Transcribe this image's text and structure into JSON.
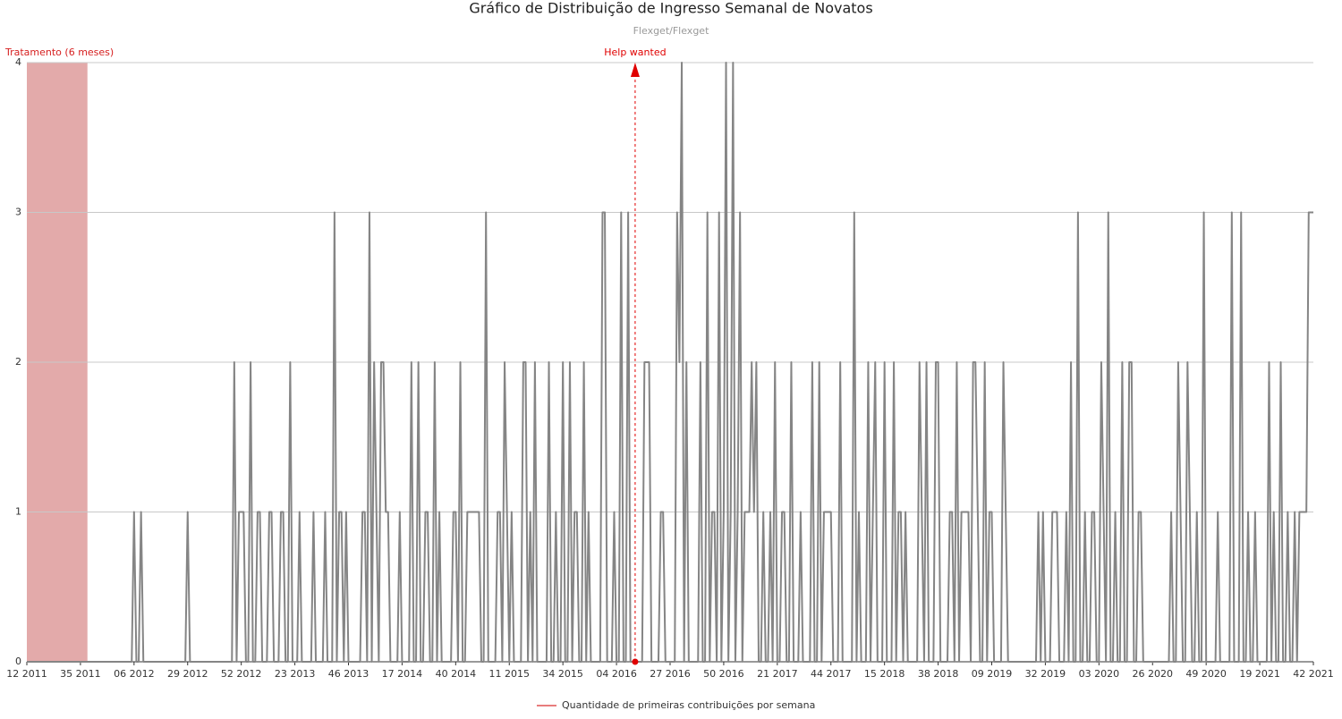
{
  "chart_data": {
    "type": "line",
    "title": "Gráfico de Distribuição de Ingresso Semanal de Novatos",
    "subtitle": "Flexget/Flexget",
    "ylim": [
      0,
      4
    ],
    "yticks": [
      0,
      1,
      2,
      3,
      4
    ],
    "grid": true,
    "annotations": {
      "treatment": {
        "label": "Tratamento (6 meses)",
        "start_index": 0,
        "end_index": 26,
        "color": "#e3aaaa"
      },
      "help_wanted": {
        "label": "Help wanted",
        "index": 261,
        "color": "#e00000"
      }
    },
    "legend_color": "#e87c7c",
    "categories": [
      "12 2011",
      null,
      null,
      null,
      null,
      null,
      null,
      null,
      null,
      null,
      null,
      null,
      null,
      null,
      null,
      null,
      null,
      null,
      null,
      null,
      null,
      null,
      null,
      "35 2011",
      null,
      null,
      null,
      null,
      null,
      null,
      null,
      null,
      null,
      null,
      null,
      null,
      null,
      null,
      null,
      null,
      null,
      null,
      null,
      null,
      null,
      null,
      "06 2012",
      null,
      null,
      null,
      null,
      null,
      null,
      null,
      null,
      null,
      null,
      null,
      null,
      null,
      null,
      null,
      null,
      null,
      null,
      null,
      null,
      null,
      null,
      "29 2012",
      null,
      null,
      null,
      null,
      null,
      null,
      null,
      null,
      null,
      null,
      null,
      null,
      null,
      null,
      null,
      null,
      null,
      null,
      null,
      null,
      null,
      null,
      "52 2012",
      null,
      null,
      null,
      null,
      null,
      null,
      null,
      null,
      null,
      null,
      null,
      null,
      null,
      null,
      null,
      null,
      null,
      null,
      null,
      null,
      null,
      null,
      "23 2013",
      null,
      null,
      null,
      null,
      null,
      null,
      null,
      null,
      null,
      null,
      null,
      null,
      null,
      null,
      null,
      null,
      null,
      null,
      null,
      null,
      null,
      null,
      "46 2013",
      null,
      null,
      null,
      null,
      null,
      null,
      null,
      null,
      null,
      null,
      null,
      null,
      null,
      null,
      null,
      null,
      null,
      null,
      null,
      null,
      null,
      null,
      "17 2014",
      null,
      null,
      null,
      null,
      null,
      null,
      null,
      null,
      null,
      null,
      null,
      null,
      null,
      null,
      null,
      null,
      null,
      null,
      null,
      null,
      null,
      null,
      "40 2014",
      null,
      null,
      null,
      null,
      null,
      null,
      null,
      null,
      null,
      null,
      null,
      null,
      null,
      null,
      null,
      null,
      null,
      null,
      null,
      null,
      null,
      null,
      "11 2015",
      null,
      null,
      null,
      null,
      null,
      null,
      null,
      null,
      null,
      null,
      null,
      null,
      null,
      null,
      null,
      null,
      null,
      null,
      null,
      null,
      null,
      null,
      "34 2015",
      null,
      null,
      null,
      null,
      null,
      null,
      null,
      null,
      null,
      null,
      null,
      null,
      null,
      null,
      null,
      null,
      null,
      null,
      null,
      null,
      null,
      null,
      "04 2016",
      null,
      null,
      null,
      null,
      null,
      null,
      null,
      null,
      null,
      null,
      null,
      null,
      null,
      null,
      null,
      null,
      null,
      null,
      null,
      null,
      null,
      null,
      "27 2016",
      null,
      null,
      null,
      null,
      null,
      null,
      null,
      null,
      null,
      null,
      null,
      null,
      null,
      null,
      null,
      null,
      null,
      null,
      null,
      null,
      null,
      null,
      "50 2016",
      null,
      null,
      null,
      null,
      null,
      null,
      null,
      null,
      null,
      null,
      null,
      null,
      null,
      null,
      null,
      null,
      null,
      null,
      null,
      null,
      null,
      null,
      "21 2017",
      null,
      null,
      null,
      null,
      null,
      null,
      null,
      null,
      null,
      null,
      null,
      null,
      null,
      null,
      null,
      null,
      null,
      null,
      null,
      null,
      null,
      null,
      "44 2017",
      null,
      null,
      null,
      null,
      null,
      null,
      null,
      null,
      null,
      null,
      null,
      null,
      null,
      null,
      null,
      null,
      null,
      null,
      null,
      null,
      null,
      null,
      "15 2018",
      null,
      null,
      null,
      null,
      null,
      null,
      null,
      null,
      null,
      null,
      null,
      null,
      null,
      null,
      null,
      null,
      null,
      null,
      null,
      null,
      null,
      null,
      "38 2018",
      null,
      null,
      null,
      null,
      null,
      null,
      null,
      null,
      null,
      null,
      null,
      null,
      null,
      null,
      null,
      null,
      null,
      null,
      null,
      null,
      null,
      null,
      "09 2019",
      null,
      null,
      null,
      null,
      null,
      null,
      null,
      null,
      null,
      null,
      null,
      null,
      null,
      null,
      null,
      null,
      null,
      null,
      null,
      null,
      null,
      null,
      "32 2019",
      null,
      null,
      null,
      null,
      null,
      null,
      null,
      null,
      null,
      null,
      null,
      null,
      null,
      null,
      null,
      null,
      null,
      null,
      null,
      null,
      null,
      null,
      "03 2020",
      null,
      null,
      null,
      null,
      null,
      null,
      null,
      null,
      null,
      null,
      null,
      null,
      null,
      null,
      null,
      null,
      null,
      null,
      null,
      null,
      null,
      null,
      "26 2020",
      null,
      null,
      null,
      null,
      null,
      null,
      null,
      null,
      null,
      null,
      null,
      null,
      null,
      null,
      null,
      null,
      null,
      null,
      null,
      null,
      null,
      null,
      "49 2020",
      null,
      null,
      null,
      null,
      null,
      null,
      null,
      null,
      null,
      null,
      null,
      null,
      null,
      null,
      null,
      null,
      null,
      null,
      null,
      null,
      null,
      null,
      "19 2021",
      null,
      null,
      null,
      null,
      null,
      null,
      null,
      null,
      null,
      null,
      null,
      null,
      null,
      null,
      null,
      null,
      null,
      null,
      null,
      null,
      null,
      null,
      "42 2021"
    ],
    "series": [
      {
        "name": "Quantidade de primeiras contribuições por semana",
        "color": "#858585",
        "values": [
          0,
          0,
          0,
          0,
          0,
          0,
          0,
          0,
          0,
          0,
          0,
          0,
          0,
          0,
          0,
          0,
          0,
          0,
          0,
          0,
          0,
          0,
          0,
          0,
          0,
          0,
          0,
          0,
          0,
          0,
          0,
          0,
          0,
          0,
          0,
          0,
          0,
          0,
          0,
          0,
          0,
          0,
          0,
          0,
          0,
          0,
          1,
          0,
          0,
          1,
          0,
          0,
          0,
          0,
          0,
          0,
          0,
          0,
          0,
          0,
          0,
          0,
          0,
          0,
          0,
          0,
          0,
          0,
          0,
          1,
          0,
          0,
          0,
          0,
          0,
          0,
          0,
          0,
          0,
          0,
          0,
          0,
          0,
          0,
          0,
          0,
          0,
          0,
          0,
          2,
          0,
          1,
          1,
          1,
          0,
          0,
          2,
          0,
          0,
          1,
          1,
          0,
          0,
          0,
          1,
          1,
          0,
          0,
          0,
          1,
          1,
          0,
          0,
          2,
          0,
          0,
          0,
          1,
          0,
          0,
          0,
          0,
          0,
          1,
          0,
          0,
          0,
          0,
          1,
          0,
          0,
          0,
          3,
          0,
          1,
          1,
          0,
          1,
          0,
          0,
          0,
          0,
          0,
          0,
          1,
          1,
          0,
          3,
          0,
          2,
          1,
          0,
          2,
          2,
          1,
          1,
          0,
          0,
          0,
          0,
          1,
          0,
          0,
          0,
          0,
          2,
          0,
          0,
          2,
          0,
          0,
          1,
          1,
          0,
          0,
          2,
          0,
          1,
          0,
          0,
          0,
          0,
          0,
          1,
          1,
          0,
          2,
          0,
          0,
          1,
          1,
          1,
          1,
          1,
          1,
          0,
          0,
          3,
          0,
          0,
          0,
          0,
          1,
          1,
          0,
          2,
          1,
          0,
          1,
          0,
          0,
          0,
          0,
          2,
          2,
          0,
          1,
          0,
          2,
          0,
          0,
          0,
          0,
          0,
          2,
          0,
          0,
          1,
          0,
          0,
          2,
          0,
          0,
          2,
          0,
          1,
          1,
          0,
          0,
          2,
          0,
          1,
          0,
          0,
          0,
          0,
          0,
          3,
          3,
          0,
          0,
          0,
          1,
          0,
          0,
          3,
          0,
          0,
          3,
          0,
          0,
          0,
          0,
          0,
          0,
          2,
          2,
          2,
          0,
          0,
          0,
          0,
          1,
          1,
          0,
          0,
          0,
          0,
          0,
          3,
          2,
          4,
          0,
          2,
          0,
          0,
          0,
          0,
          0,
          2,
          0,
          0,
          3,
          0,
          1,
          1,
          0,
          3,
          0,
          1,
          4,
          0,
          1,
          4,
          0,
          1,
          3,
          0,
          1,
          1,
          1,
          2,
          1,
          2,
          0,
          0,
          1,
          0,
          0,
          1,
          0,
          2,
          0,
          0,
          1,
          1,
          0,
          0,
          2,
          0,
          0,
          0,
          1,
          0,
          0,
          0,
          0,
          2,
          0,
          0,
          2,
          0,
          1,
          1,
          1,
          1,
          0,
          0,
          0,
          2,
          0,
          0,
          0,
          0,
          0,
          3,
          0,
          1,
          0,
          0,
          0,
          2,
          0,
          1,
          2,
          0,
          0,
          0,
          2,
          0,
          0,
          0,
          2,
          0,
          1,
          1,
          0,
          1,
          0,
          0,
          0,
          0,
          0,
          2,
          1,
          0,
          2,
          0,
          0,
          0,
          2,
          2,
          0,
          0,
          0,
          0,
          1,
          1,
          0,
          2,
          0,
          1,
          1,
          1,
          1,
          0,
          2,
          2,
          1,
          0,
          0,
          2,
          0,
          1,
          1,
          0,
          0,
          0,
          0,
          2,
          1,
          0,
          0,
          0,
          0,
          0,
          0,
          0,
          0,
          0,
          0,
          0,
          0,
          0,
          1,
          0,
          1,
          0,
          0,
          0,
          1,
          1,
          1,
          0,
          0,
          0,
          1,
          0,
          2,
          0,
          0,
          3,
          0,
          0,
          1,
          0,
          0,
          1,
          1,
          0,
          0,
          2,
          1,
          0,
          3,
          0,
          0,
          1,
          0,
          0,
          2,
          0,
          0,
          2,
          2,
          0,
          0,
          1,
          1,
          0,
          0,
          0,
          0,
          0,
          0,
          0,
          0,
          0,
          0,
          0,
          0,
          1,
          0,
          0,
          2,
          1,
          0,
          0,
          2,
          1,
          0,
          0,
          1,
          0,
          0,
          3,
          0,
          0,
          0,
          0,
          0,
          1,
          0,
          0,
          0,
          0,
          0,
          3,
          0,
          0,
          0,
          3,
          0,
          0,
          1,
          0,
          0,
          1,
          0,
          0,
          0,
          0,
          0,
          2,
          0,
          1,
          0,
          0,
          2,
          0,
          0,
          1,
          0,
          0,
          1,
          0,
          1,
          1,
          1,
          1,
          3,
          3,
          3
        ]
      }
    ]
  }
}
